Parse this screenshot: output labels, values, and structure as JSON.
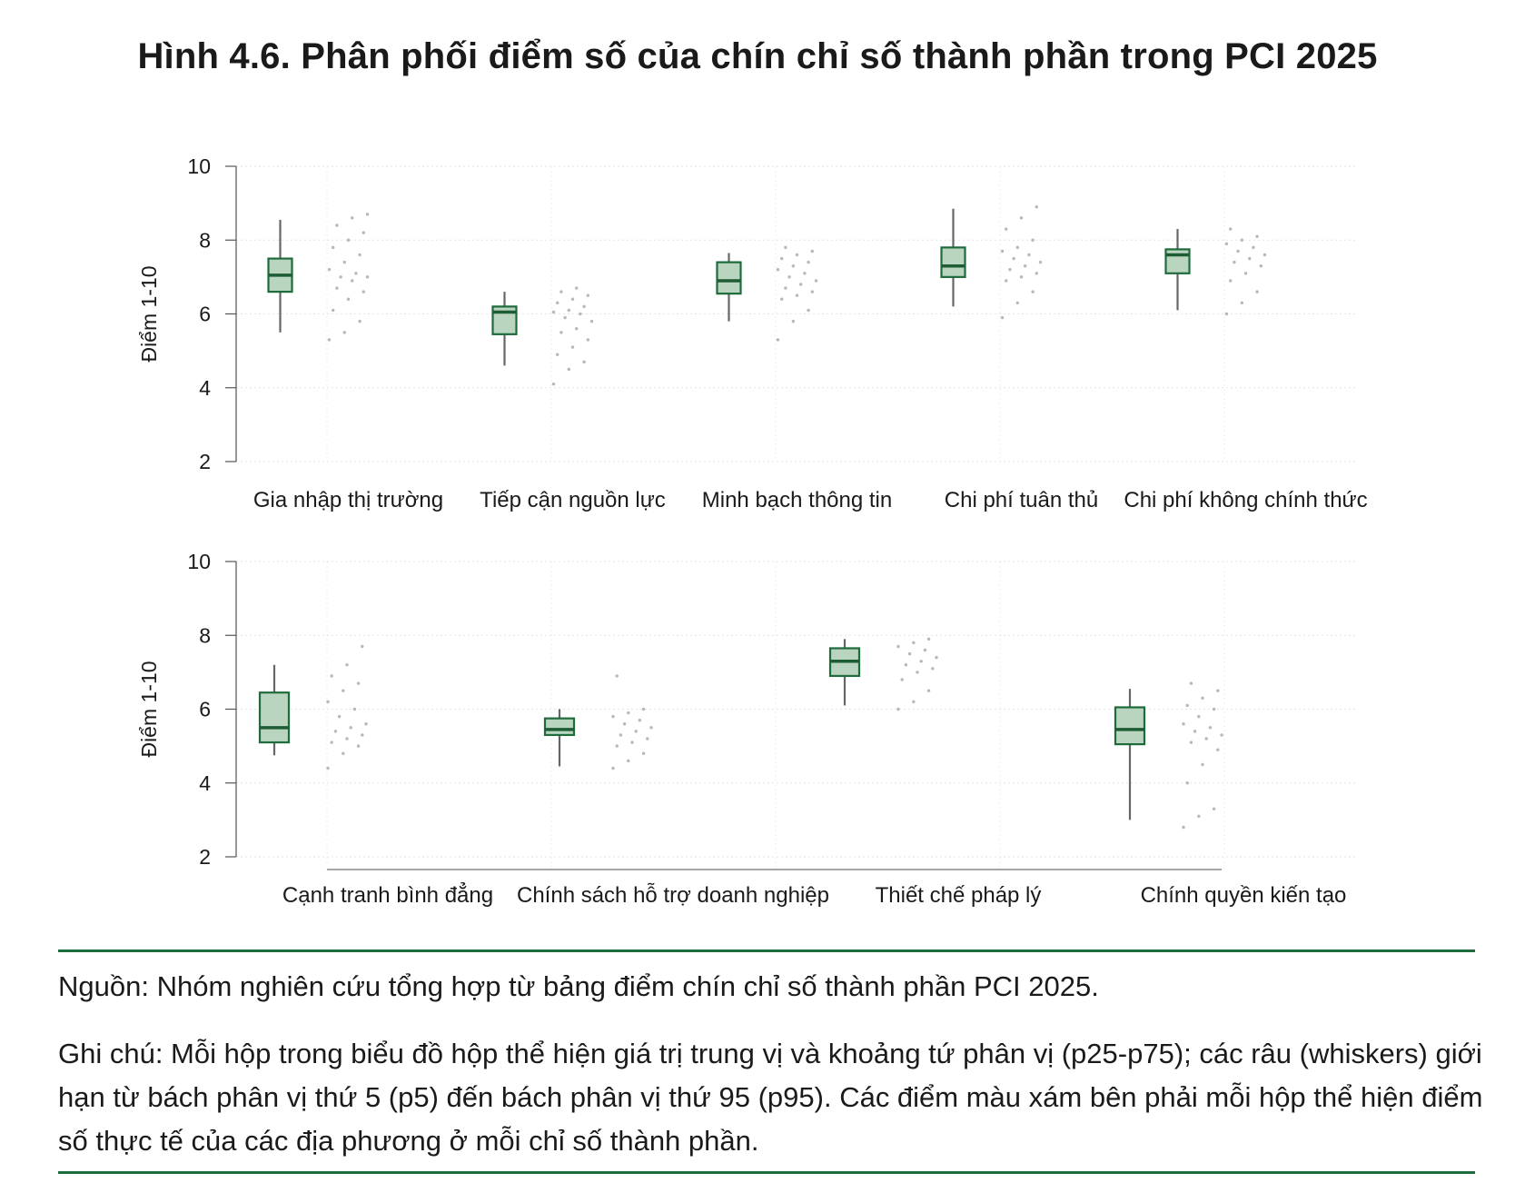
{
  "title": "Hình 4.6. Phân phối điểm số của chín chỉ số thành phần trong PCI 2025",
  "source": "Nguồn: Nhóm nghiên cứu tổng hợp từ bảng điểm chín chỉ số thành phần PCI 2025.",
  "note": "Ghi chú: Mỗi hộp trong biểu đồ hộp thể hiện giá trị trung vị và khoảng tứ phân vị (p25-p75); các râu (whiskers) giới hạn từ bách phân vị thứ 5 (p5) đến bách phân vị thứ 95 (p95). Các điểm màu xám bên phải mỗi hộp thể hiện điểm số thực tế của các địa phương ở mỗi chỉ số thành phần.",
  "colors": {
    "box_fill": "#b9d4bf",
    "box_stroke": "#1e6b3c",
    "median": "#1e5c34",
    "whisker": "#666666",
    "dots": "#b8b8b8",
    "rule": "#1e6b3c"
  },
  "chart_data": [
    {
      "type": "box",
      "ylabel": "Điểm 1-10",
      "ylim": [
        2,
        10
      ],
      "yticks": [
        "2",
        "4",
        "6",
        "8",
        "10"
      ],
      "grid": true,
      "categories": [
        "Gia nhập thị trường",
        "Tiếp cận nguồn lực",
        "Minh bạch thông tin",
        "Chi phí tuân thủ",
        "Chi phí không chính thức"
      ],
      "boxes": [
        {
          "p5": 5.5,
          "p25": 6.6,
          "median": 7.05,
          "p75": 7.5,
          "p95": 8.55,
          "points": [
            5.3,
            5.5,
            5.8,
            6.1,
            6.4,
            6.6,
            6.7,
            6.9,
            7.0,
            7.0,
            7.1,
            7.2,
            7.4,
            7.6,
            7.8,
            8.0,
            8.2,
            8.4,
            8.6,
            8.7
          ]
        },
        {
          "p5": 4.6,
          "p25": 5.45,
          "median": 6.05,
          "p75": 6.2,
          "p95": 6.6,
          "points": [
            4.1,
            4.5,
            4.7,
            4.9,
            5.1,
            5.3,
            5.5,
            5.6,
            5.8,
            5.9,
            6.0,
            6.05,
            6.1,
            6.2,
            6.3,
            6.4,
            6.5,
            6.6,
            6.7
          ]
        },
        {
          "p5": 5.8,
          "p25": 6.55,
          "median": 6.9,
          "p75": 7.4,
          "p95": 7.65,
          "points": [
            5.3,
            5.8,
            6.1,
            6.4,
            6.5,
            6.6,
            6.7,
            6.8,
            6.9,
            7.0,
            7.1,
            7.2,
            7.3,
            7.4,
            7.5,
            7.6,
            7.7,
            7.8
          ]
        },
        {
          "p5": 6.2,
          "p25": 7.0,
          "median": 7.3,
          "p75": 7.8,
          "p95": 8.85,
          "points": [
            5.9,
            6.3,
            6.6,
            6.9,
            7.0,
            7.1,
            7.2,
            7.3,
            7.4,
            7.5,
            7.6,
            7.7,
            7.8,
            8.0,
            8.3,
            8.6,
            8.9
          ]
        },
        {
          "p5": 6.1,
          "p25": 7.1,
          "median": 7.6,
          "p75": 7.75,
          "p95": 8.3,
          "points": [
            6.0,
            6.3,
            6.6,
            6.9,
            7.1,
            7.3,
            7.4,
            7.5,
            7.6,
            7.7,
            7.8,
            7.9,
            8.0,
            8.1,
            8.3
          ]
        }
      ]
    },
    {
      "type": "box",
      "ylabel": "Điểm 1-10",
      "ylim": [
        2,
        10
      ],
      "yticks": [
        "2",
        "4",
        "6",
        "8",
        "10"
      ],
      "grid": true,
      "categories": [
        "Cạnh tranh bình đẳng",
        "Chính sách hỗ trợ doanh nghiệp",
        "Thiết chế pháp lý",
        "Chính quyền kiến tạo"
      ],
      "boxes": [
        {
          "p5": 4.75,
          "p25": 5.1,
          "median": 5.5,
          "p75": 6.45,
          "p95": 7.2,
          "points": [
            4.4,
            4.8,
            5.0,
            5.1,
            5.2,
            5.3,
            5.4,
            5.5,
            5.6,
            5.8,
            6.0,
            6.2,
            6.5,
            6.7,
            6.9,
            7.2,
            7.7
          ]
        },
        {
          "p5": 4.45,
          "p25": 5.3,
          "median": 5.45,
          "p75": 5.75,
          "p95": 6.0,
          "points": [
            4.4,
            4.6,
            4.8,
            5.0,
            5.1,
            5.2,
            5.3,
            5.4,
            5.5,
            5.6,
            5.7,
            5.8,
            5.9,
            6.0,
            6.9
          ]
        },
        {
          "p5": 6.1,
          "p25": 6.9,
          "median": 7.3,
          "p75": 7.65,
          "p95": 7.9,
          "points": [
            6.0,
            6.2,
            6.5,
            6.8,
            7.0,
            7.1,
            7.2,
            7.3,
            7.4,
            7.5,
            7.6,
            7.7,
            7.8,
            7.9
          ]
        },
        {
          "p5": 3.0,
          "p25": 5.05,
          "median": 5.45,
          "p75": 6.05,
          "p95": 6.55,
          "points": [
            2.8,
            3.1,
            3.3,
            4.0,
            4.5,
            4.9,
            5.1,
            5.2,
            5.3,
            5.4,
            5.5,
            5.6,
            5.8,
            6.0,
            6.1,
            6.3,
            6.5,
            6.7
          ]
        }
      ]
    }
  ]
}
